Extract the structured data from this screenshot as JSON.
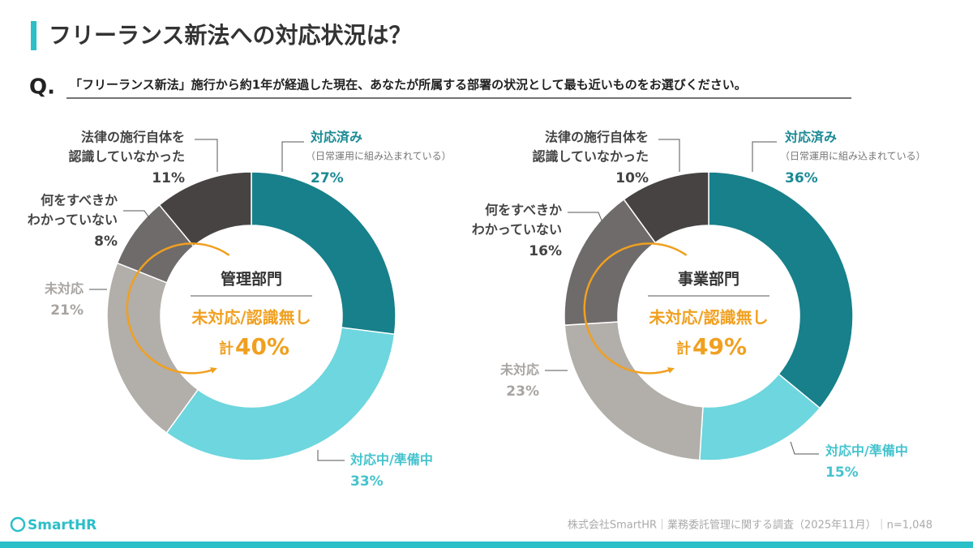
{
  "header": {
    "title": "フリーランス新法への対応状況は？"
  },
  "question": {
    "label": "Q.",
    "text": "「フリーランス新法」施行から約1年が経過した現在、あなたが所属する部署の状況として最も近いものをお選びください。"
  },
  "chart_data": [
    {
      "type": "pie",
      "title": "管理部門",
      "center_label": "未対応/認識無し",
      "center_total": {
        "prefix": "計",
        "value": 40,
        "label": "40%"
      },
      "categories": [
        [
          "対応済み"
        ],
        [
          "対応中/準備中"
        ],
        [
          "未対応"
        ],
        [
          "何をすべきか",
          "わかっていない"
        ],
        [
          "法律の施行自体を",
          "認識していなかった"
        ]
      ],
      "category_notes": [
        "（日常運用に組み込まれている）",
        null,
        null,
        null,
        null
      ],
      "values": [
        27,
        33,
        21,
        8,
        11
      ],
      "value_labels": [
        "27%",
        "33%",
        "21%",
        "8%",
        "11%"
      ],
      "colors": [
        "#17808a",
        "#6dd6de",
        "#b2aeaa",
        "#6f6b6b",
        "#484343"
      ],
      "label_colors": [
        "#1a8a94",
        "#45c3cd",
        "#a8a4a1",
        "#444444",
        "#444444"
      ]
    },
    {
      "type": "pie",
      "title": "事業部門",
      "center_label": "未対応/認識無し",
      "center_total": {
        "prefix": "計",
        "value": 49,
        "label": "49%"
      },
      "categories": [
        [
          "対応済み"
        ],
        [
          "対応中/準備中"
        ],
        [
          "未対応"
        ],
        [
          "何をすべきか",
          "わかっていない"
        ],
        [
          "法律の施行自体を",
          "認識していなかった"
        ]
      ],
      "category_notes": [
        "（日常運用に組み込まれている）",
        null,
        null,
        null,
        null
      ],
      "values": [
        36,
        15,
        23,
        16,
        10
      ],
      "value_labels": [
        "36%",
        "15%",
        "23%",
        "16%",
        "10%"
      ],
      "colors": [
        "#17808a",
        "#6dd6de",
        "#b2aeaa",
        "#6f6b6b",
        "#484343"
      ],
      "label_colors": [
        "#1a8a94",
        "#45c3cd",
        "#a8a4a1",
        "#444444",
        "#444444"
      ]
    }
  ],
  "footer": {
    "logo": "SmartHR",
    "source": "株式会社SmartHR｜業務委託管理に関する調査（2025年11月）｜n=1,048"
  }
}
